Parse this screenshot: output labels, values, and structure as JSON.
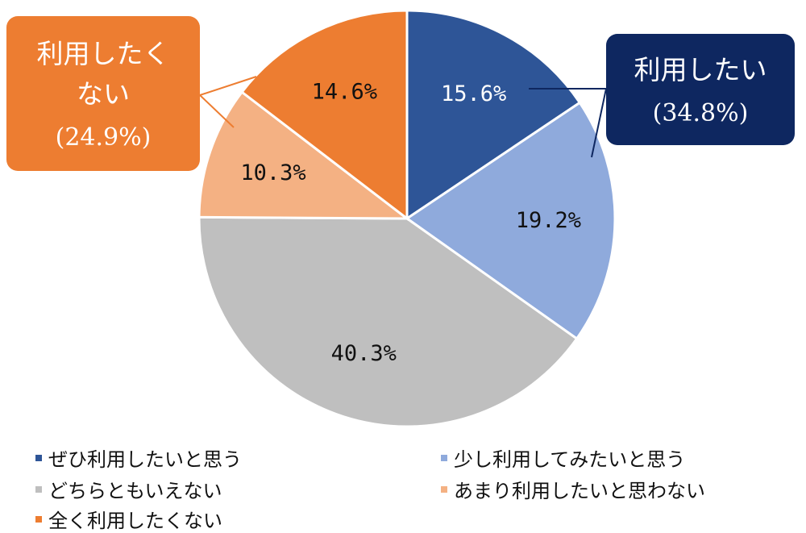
{
  "chart_data": {
    "type": "pie",
    "slices": [
      {
        "label": "ぜひ利用したいと思う",
        "value": 15.6,
        "display": "15.6%",
        "color": "#2E5597"
      },
      {
        "label": "少し利用してみたいと思う",
        "value": 19.2,
        "display": "19.2%",
        "color": "#8FAADC"
      },
      {
        "label": "どちらともいえない",
        "value": 40.3,
        "display": "40.3%",
        "color": "#BFBFBF"
      },
      {
        "label": "あまり利用したいと思わない",
        "value": 10.3,
        "display": "10.3%",
        "color": "#F4B183"
      },
      {
        "label": "全く利用したくない",
        "value": 14.6,
        "display": "14.6%",
        "color": "#ED7D31"
      }
    ],
    "legend_position": "bottom",
    "callouts": [
      {
        "line1": "利用したい",
        "line2": "(34.8%)",
        "color": "#0E2760"
      },
      {
        "line1": "利用したく",
        "line2": "ない",
        "line3": "(24.9%)",
        "color": "#ED7D31"
      }
    ]
  },
  "legend": {
    "items": [
      {
        "label": "ぜひ利用したいと思う",
        "color": "#2E5597"
      },
      {
        "label": "少し利用してみたいと思う",
        "color": "#8FAADC"
      },
      {
        "label": "どちらともいえない",
        "color": "#BFBFBF"
      },
      {
        "label": "あまり利用したいと思わない",
        "color": "#F4B183"
      },
      {
        "label": "全く利用したくない",
        "color": "#ED7D31"
      }
    ]
  }
}
